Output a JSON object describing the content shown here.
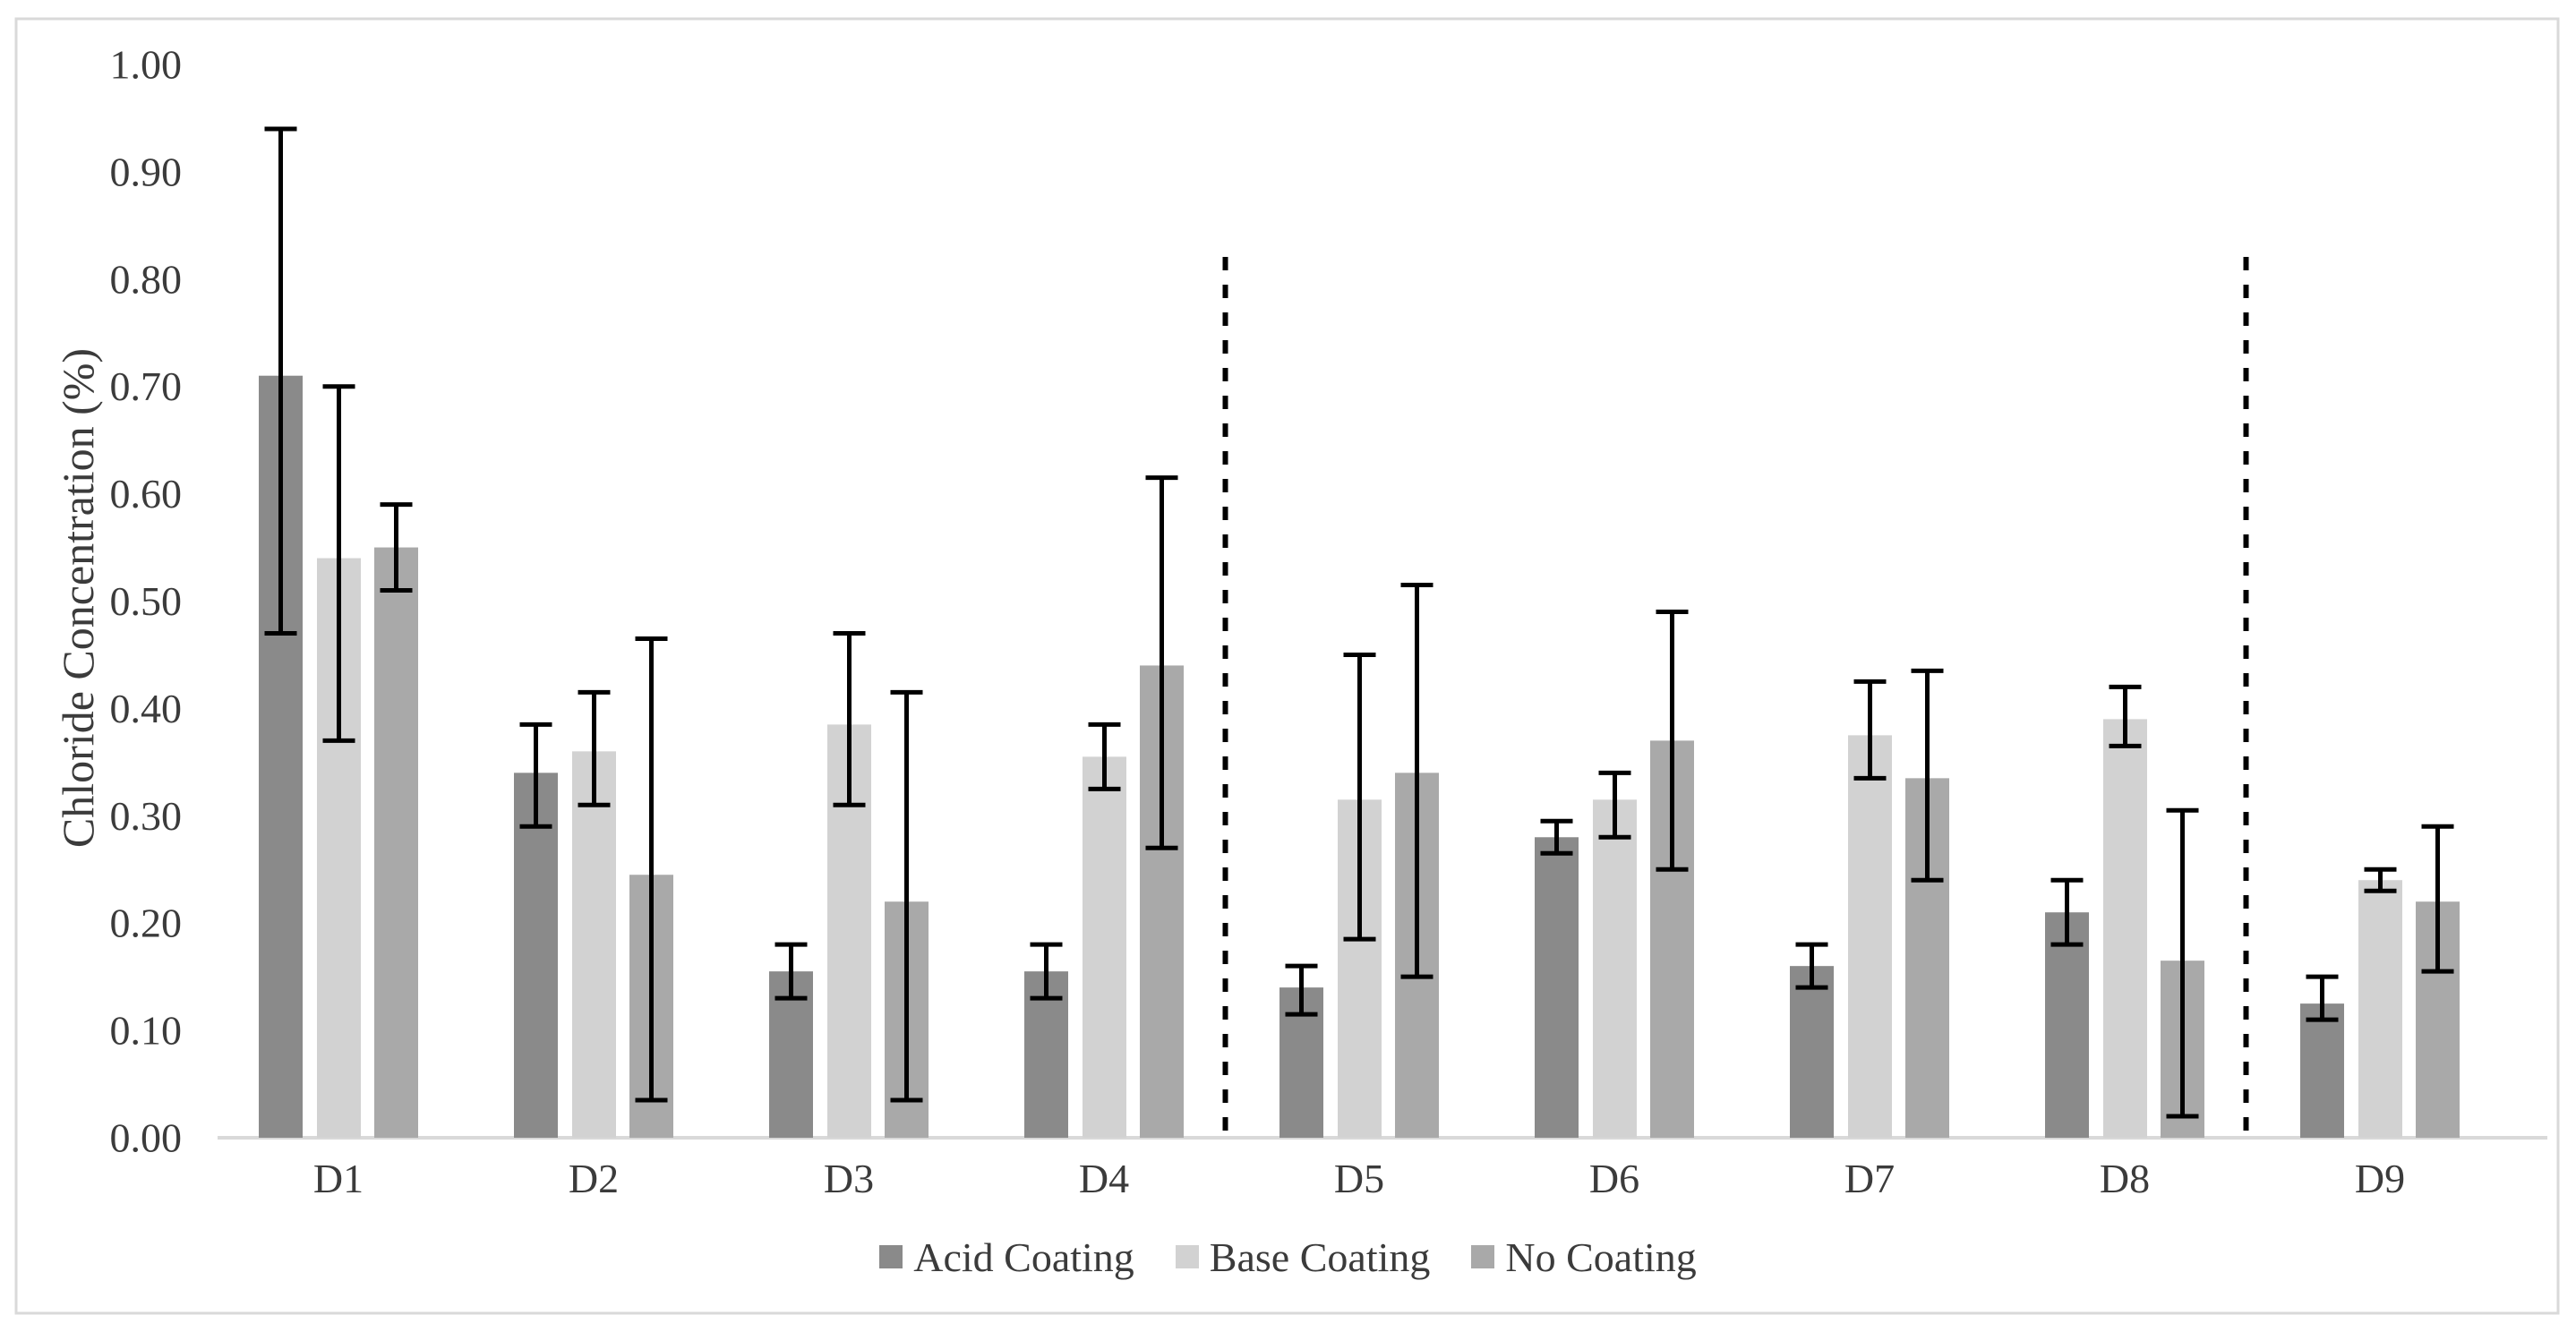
{
  "chart_data": {
    "type": "bar",
    "title": "",
    "xlabel": "",
    "ylabel": "Chloride Concentration (%)",
    "ylim": [
      0.0,
      1.0
    ],
    "ytick_step": 0.1,
    "ytick_labels": [
      "0.00",
      "0.10",
      "0.20",
      "0.30",
      "0.40",
      "0.50",
      "0.60",
      "0.70",
      "0.80",
      "0.90",
      "1.00"
    ],
    "grid": false,
    "legend_position": "bottom",
    "categories": [
      "D1",
      "D2",
      "D3",
      "D4",
      "D5",
      "D6",
      "D7",
      "D8",
      "D9"
    ],
    "separators_after": [
      "D4",
      "D8"
    ],
    "separator_style": "dashed-vertical-black",
    "error_bars": true,
    "series": [
      {
        "name": "Acid Coating",
        "color": "#8a8a8a",
        "values": [
          0.71,
          0.34,
          0.155,
          0.155,
          0.14,
          0.28,
          0.16,
          0.21,
          0.125
        ],
        "err_low": [
          0.47,
          0.29,
          0.13,
          0.13,
          0.115,
          0.265,
          0.14,
          0.18,
          0.11
        ],
        "err_high": [
          0.94,
          0.385,
          0.18,
          0.18,
          0.16,
          0.295,
          0.18,
          0.24,
          0.15
        ]
      },
      {
        "name": "Base Coating",
        "color": "#d2d2d2",
        "values": [
          0.54,
          0.36,
          0.385,
          0.355,
          0.315,
          0.315,
          0.375,
          0.39,
          0.24
        ],
        "err_low": [
          0.37,
          0.31,
          0.31,
          0.325,
          0.185,
          0.28,
          0.335,
          0.365,
          0.23
        ],
        "err_high": [
          0.7,
          0.415,
          0.47,
          0.385,
          0.45,
          0.34,
          0.425,
          0.42,
          0.25
        ]
      },
      {
        "name": "No Coating",
        "color": "#a9a9a9",
        "values": [
          0.55,
          0.245,
          0.22,
          0.44,
          0.34,
          0.37,
          0.335,
          0.165,
          0.22
        ],
        "err_low": [
          0.51,
          0.035,
          0.035,
          0.27,
          0.15,
          0.25,
          0.24,
          0.02,
          0.155
        ],
        "err_high": [
          0.59,
          0.465,
          0.415,
          0.615,
          0.515,
          0.49,
          0.435,
          0.305,
          0.29
        ]
      }
    ]
  }
}
